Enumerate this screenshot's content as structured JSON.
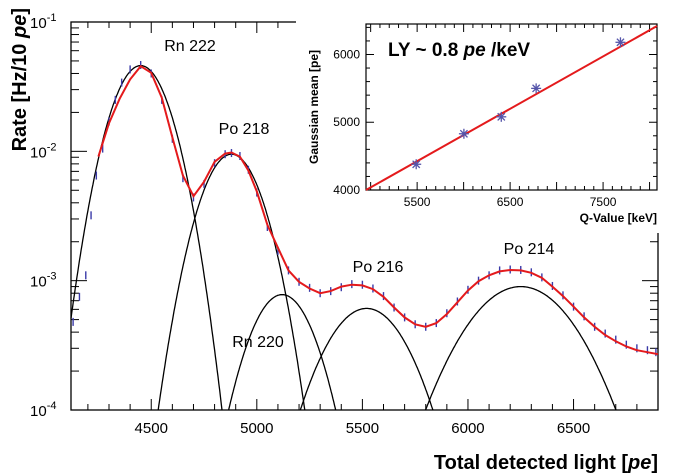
{
  "chart_data": [
    {
      "type": "line",
      "xlabel": "Total detected light [pe]",
      "ylabel": "Rate [Hz/10 pe]",
      "xlim": [
        4120,
        6900
      ],
      "ylim": [
        0.0001,
        0.1
      ],
      "yscale": "log",
      "x_ticks": [
        4500,
        5000,
        5500,
        6000,
        6500
      ],
      "y_ticks": [
        {
          "value": 0.0001,
          "label_base": "10",
          "label_exp": "-4"
        },
        {
          "value": 0.001,
          "label_base": "10",
          "label_exp": "-3"
        },
        {
          "value": 0.01,
          "label_base": "10",
          "label_exp": "-2"
        },
        {
          "value": 0.1,
          "label_base": "10",
          "label_exp": "-1"
        }
      ],
      "annotations": [
        "Rn 222",
        "Po 218",
        "Rn 220",
        "Po 216",
        "Po 214"
      ],
      "series": [
        {
          "kind": "gaussian-component",
          "label": "Rn 222",
          "mean": 4450,
          "sigma": 110,
          "peak": 0.046
        },
        {
          "kind": "gaussian-component",
          "label": "Po 218",
          "mean": 4880,
          "sigma": 115,
          "peak": 0.0095
        },
        {
          "kind": "gaussian-component",
          "label": "Rn 220",
          "mean": 5120,
          "sigma": 125,
          "peak": 0.00078
        },
        {
          "kind": "gaussian-component",
          "label": "Po 216",
          "mean": 5520,
          "sigma": 165,
          "peak": 0.00061
        },
        {
          "kind": "gaussian-component",
          "label": "Po 214",
          "mean": 6250,
          "sigma": 215,
          "peak": 0.0009
        },
        {
          "kind": "data-points",
          "color": "#3a3aa8",
          "x": [
            4130,
            4160,
            4190,
            4215,
            4240,
            4270,
            4300,
            4330,
            4360,
            4400,
            4450,
            4500,
            4550,
            4600,
            4650,
            4700,
            4750,
            4800,
            4850,
            4880,
            4920,
            4960,
            5000,
            5050,
            5100,
            5150,
            5200,
            5250,
            5300,
            5350,
            5400,
            5450,
            5500,
            5550,
            5600,
            5650,
            5700,
            5750,
            5800,
            5850,
            5900,
            5950,
            6000,
            6050,
            6100,
            6150,
            6200,
            6250,
            6300,
            6350,
            6400,
            6450,
            6500,
            6550,
            6600,
            6650,
            6700,
            6750,
            6800,
            6850,
            6890
          ],
          "y": [
            0.00048,
            0.00075,
            0.0011,
            0.0032,
            0.0065,
            0.0105,
            0.017,
            0.025,
            0.034,
            0.043,
            0.0465,
            0.04,
            0.025,
            0.0125,
            0.0062,
            0.0044,
            0.0056,
            0.0081,
            0.0095,
            0.0097,
            0.0092,
            0.0072,
            0.0048,
            0.0026,
            0.0017,
            0.0012,
            0.00098,
            0.00088,
            0.0008,
            0.00083,
            0.00089,
            0.00094,
            0.00093,
            0.00087,
            0.00076,
            0.00062,
            0.00052,
            0.00046,
            0.00044,
            0.00047,
            0.00056,
            0.00069,
            0.00085,
            0.001,
            0.0011,
            0.0012,
            0.00122,
            0.00121,
            0.00116,
            0.00106,
            0.00091,
            0.00077,
            0.00063,
            0.00053,
            0.00044,
            0.00039,
            0.00035,
            0.00032,
            0.0003,
            0.00029,
            0.00028
          ]
        },
        {
          "kind": "fit",
          "color": "#e41a1c",
          "x": [
            4250,
            4300,
            4350,
            4400,
            4450,
            4500,
            4550,
            4600,
            4650,
            4700,
            4750,
            4800,
            4850,
            4880,
            4920,
            4960,
            5000,
            5050,
            5100,
            5150,
            5200,
            5250,
            5300,
            5350,
            5400,
            5450,
            5500,
            5550,
            5600,
            5650,
            5700,
            5750,
            5800,
            5850,
            5900,
            5950,
            6000,
            6050,
            6100,
            6150,
            6200,
            6250,
            6300,
            6350,
            6400,
            6450,
            6500,
            6550,
            6600,
            6650,
            6700,
            6750,
            6800,
            6850,
            6900
          ],
          "y": [
            0.0091,
            0.0165,
            0.0255,
            0.036,
            0.0455,
            0.0405,
            0.026,
            0.0128,
            0.0065,
            0.0045,
            0.0058,
            0.0083,
            0.0096,
            0.0098,
            0.0091,
            0.0071,
            0.0049,
            0.0027,
            0.0018,
            0.0012,
            0.00098,
            0.00087,
            0.0008,
            0.00083,
            0.0009,
            0.00093,
            0.00092,
            0.00086,
            0.00075,
            0.00062,
            0.00052,
            0.00046,
            0.00044,
            0.00047,
            0.00055,
            0.00068,
            0.00084,
            0.00099,
            0.0011,
            0.00118,
            0.00121,
            0.0012,
            0.00115,
            0.00105,
            0.0009,
            0.00076,
            0.00063,
            0.00052,
            0.00044,
            0.00038,
            0.00034,
            0.00031,
            0.00029,
            0.00028,
            0.00027
          ]
        }
      ]
    },
    {
      "type": "scatter",
      "annotation": "LY ~ 0.8",
      "annotation_unit_italic": "pe",
      "annotation_tail": "/keV",
      "xlabel": "Q-Value [keV]",
      "ylabel": "Gaussian mean [pe]",
      "xlim": [
        4950,
        8080
      ],
      "ylim": [
        4000,
        6450
      ],
      "x_ticks": [
        5500,
        6000,
        6500,
        7000,
        7500
      ],
      "x_tick_labels_shown": [
        5500,
        6500,
        7500
      ],
      "y_ticks": [
        4000,
        5000,
        6000
      ],
      "series": [
        {
          "kind": "points",
          "color": "#5555aa",
          "x": [
            5490,
            6003,
            6405,
            6780,
            7687
          ],
          "y": [
            4380,
            4830,
            5080,
            5500,
            6180
          ]
        },
        {
          "kind": "fit-line",
          "color": "#e41a1c",
          "x": [
            4950,
            8080
          ],
          "y": [
            4000,
            6420
          ]
        }
      ]
    }
  ]
}
